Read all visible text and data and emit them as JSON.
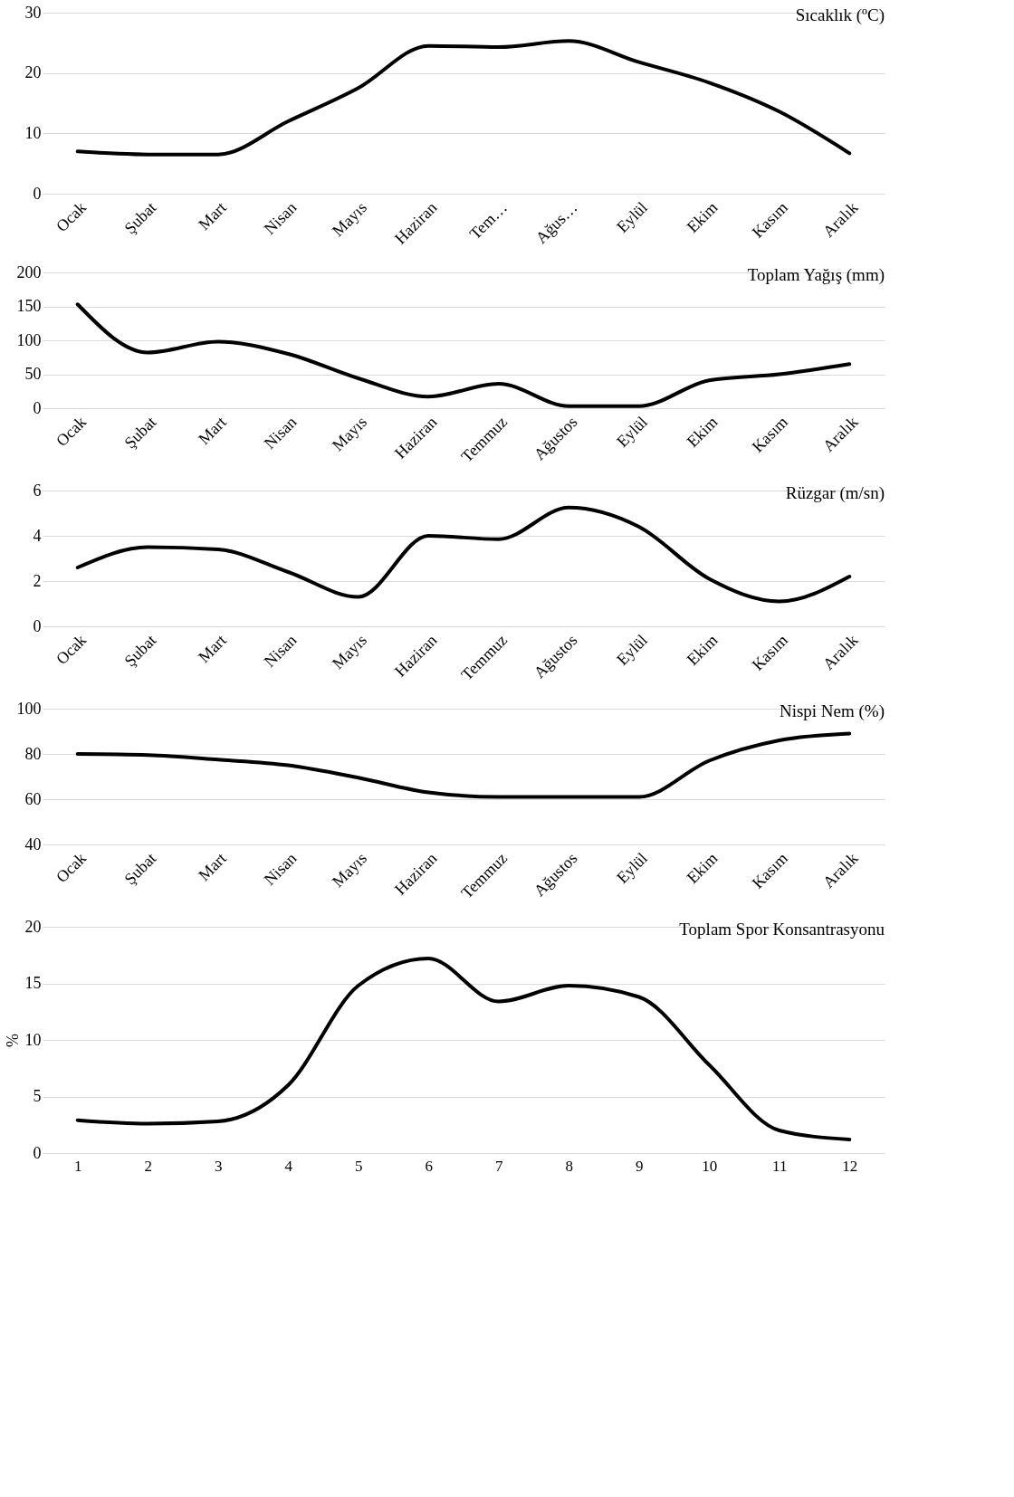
{
  "chart_data": [
    {
      "type": "line",
      "title": "Sıcaklık (ºC)",
      "categories": [
        "Ocak",
        "Şubat",
        "Mart",
        "Nisan",
        "Mayıs",
        "Haziran",
        "Tem…",
        "Ağus…",
        "Eylül",
        "Ekim",
        "Kasım",
        "Aralık"
      ],
      "series": [
        {
          "color": "#000000",
          "values": [
            7.0,
            6.5,
            6.5,
            12.0,
            17.5,
            24.5,
            24.3,
            25.3,
            21.8,
            18.4,
            13.6,
            6.7
          ]
        }
      ],
      "ylim": [
        0,
        30
      ],
      "yticks": [
        0,
        10,
        20,
        30
      ],
      "grid": "y",
      "legend": false,
      "marker": "none",
      "line_style": "solid"
    },
    {
      "type": "line",
      "title": "Toplam Yağış (mm)",
      "categories": [
        "Ocak",
        "Şubat",
        "Mart",
        "Nisan",
        "Mayıs",
        "Haziran",
        "Temmuz",
        "Ağustos",
        "Eylül",
        "Ekim",
        "Kasım",
        "Aralık"
      ],
      "series": [
        {
          "color": "#000000",
          "values": [
            153,
            82,
            98,
            80,
            44,
            17,
            36,
            3,
            3,
            41,
            50,
            65
          ]
        }
      ],
      "ylim": [
        0,
        200
      ],
      "yticks": [
        0,
        50,
        100,
        150,
        200
      ],
      "grid": "y",
      "legend": false,
      "marker": "none",
      "line_style": "solid"
    },
    {
      "type": "line",
      "title": "Rüzgar (m/sn)",
      "categories": [
        "Ocak",
        "Şubat",
        "Mart",
        "Nisan",
        "Mayıs",
        "Haziran",
        "Temmuz",
        "Ağustos",
        "Eylül",
        "Ekim",
        "Kasım",
        "Aralık"
      ],
      "series": [
        {
          "color": "#000000",
          "values": [
            2.6,
            3.5,
            3.4,
            2.4,
            1.3,
            4.0,
            3.85,
            5.25,
            4.4,
            2.1,
            1.1,
            2.2
          ]
        }
      ],
      "ylim": [
        0,
        6
      ],
      "yticks": [
        0,
        2,
        4,
        6
      ],
      "grid": "y",
      "legend": false,
      "marker": "none",
      "line_style": "solid"
    },
    {
      "type": "line",
      "title": "Nispi Nem (%)",
      "categories": [
        "Ocak",
        "Şubat",
        "Mart",
        "Nisan",
        "Mayıs",
        "Haziran",
        "Temmuz",
        "Ağustos",
        "Eylül",
        "Ekim",
        "Kasım",
        "Aralık"
      ],
      "series": [
        {
          "color": "#000000",
          "values": [
            80,
            79.5,
            77.5,
            75,
            69.5,
            63,
            61,
            61,
            61,
            77,
            86,
            89
          ]
        }
      ],
      "ylim": [
        40,
        100
      ],
      "yticks": [
        40,
        60,
        80,
        100
      ],
      "grid": "y",
      "legend": false,
      "marker": "none",
      "line_style": "solid"
    },
    {
      "type": "line",
      "title": "Toplam Spor Konsantrasyonu",
      "ylabel": "%",
      "x": [
        1,
        2,
        3,
        4,
        5,
        6,
        7,
        8,
        9,
        10,
        11,
        12
      ],
      "xlim": [
        0.5,
        12.5
      ],
      "xticks": [
        1,
        2,
        3,
        4,
        5,
        6,
        7,
        8,
        9,
        10,
        11,
        12
      ],
      "series": [
        {
          "color": "#000000",
          "values": [
            2.9,
            2.6,
            2.8,
            6.0,
            14.8,
            17.2,
            13.4,
            14.8,
            13.8,
            7.8,
            2.0,
            1.2
          ]
        }
      ],
      "ylim": [
        0,
        20
      ],
      "yticks": [
        0,
        5,
        10,
        15,
        20
      ],
      "grid": "y",
      "legend": false,
      "marker": "none",
      "line_style": "solid"
    }
  ]
}
